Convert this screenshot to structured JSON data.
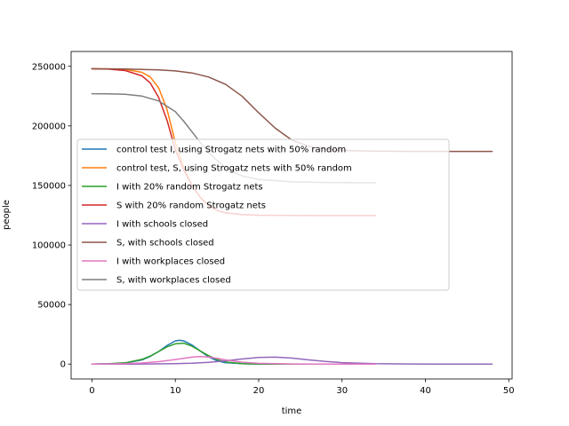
{
  "chart_data": {
    "type": "line",
    "title": "",
    "xlabel": "time",
    "ylabel": "people",
    "xlim": [
      -2.5,
      50.4
    ],
    "ylim": [
      -12500,
      262500
    ],
    "xticks": [
      0,
      10,
      20,
      30,
      40,
      50
    ],
    "yticks": [
      0,
      50000,
      100000,
      150000,
      200000,
      250000
    ],
    "grid": false,
    "legend_position": "center-left",
    "series": [
      {
        "name": "control test I, using Strogatz nets with 50% random",
        "color": "#1f77b4",
        "x": [
          0,
          2,
          4,
          6,
          7,
          8,
          9,
          10,
          10.5,
          11,
          12,
          13,
          14,
          15,
          16,
          18,
          20,
          24,
          28,
          32,
          34
        ],
        "y": [
          0,
          200,
          900,
          3500,
          6500,
          10500,
          15500,
          19500,
          20000,
          19500,
          16000,
          11000,
          6000,
          2800,
          1200,
          300,
          50,
          0,
          0,
          0,
          0
        ]
      },
      {
        "name": "control test, S, using Strogatz nets with 50% random",
        "color": "#ff7f0e",
        "x": [
          0,
          2,
          4,
          6,
          7,
          8,
          9,
          10,
          11,
          12,
          13,
          14,
          15,
          16,
          18,
          20,
          24,
          28,
          32,
          34
        ],
        "y": [
          248000,
          247900,
          247500,
          245000,
          241000,
          232000,
          214000,
          186000,
          165000,
          150000,
          140000,
          133000,
          129000,
          127000,
          125500,
          125000,
          124800,
          124700,
          124700,
          124700
        ]
      },
      {
        "name": "I  with 20% random Strogatz nets",
        "color": "#2ca02c",
        "x": [
          0,
          2,
          4,
          6,
          7,
          8,
          9,
          10,
          11,
          12,
          13,
          14,
          15,
          16,
          18,
          20,
          24,
          28,
          32,
          34
        ],
        "y": [
          0,
          300,
          1100,
          4000,
          6800,
          10500,
          14500,
          17000,
          17500,
          15000,
          11000,
          7000,
          3800,
          1800,
          400,
          80,
          0,
          0,
          0,
          0
        ]
      },
      {
        "name": "S  with 20% random Strogatz nets",
        "color": "#d62728",
        "x": [
          0,
          2,
          4,
          6,
          7,
          8,
          9,
          10,
          11,
          12,
          13,
          14,
          15,
          16,
          18,
          20,
          24,
          28,
          32,
          34
        ],
        "y": [
          248000,
          247700,
          246500,
          242000,
          236000,
          224000,
          205000,
          180000,
          163000,
          150000,
          140000,
          133000,
          129000,
          127000,
          125500,
          125000,
          124800,
          124700,
          124700,
          124700
        ]
      },
      {
        "name": "I with schools closed",
        "color": "#9467bd",
        "x": [
          0,
          5,
          10,
          12,
          14,
          16,
          18,
          20,
          22,
          24,
          26,
          28,
          30,
          34,
          38,
          42,
          48
        ],
        "y": [
          0,
          50,
          300,
          700,
          1400,
          2700,
          4300,
          5600,
          5800,
          5000,
          3500,
          2200,
          1200,
          300,
          80,
          20,
          0
        ]
      },
      {
        "name": "S, with schools closed",
        "color": "#8c564b",
        "x": [
          0,
          4,
          8,
          10,
          12,
          14,
          16,
          18,
          20,
          22,
          24,
          26,
          28,
          30,
          32,
          34,
          38,
          42,
          48
        ],
        "y": [
          248000,
          247800,
          247000,
          246200,
          244500,
          241000,
          235000,
          225000,
          211000,
          198000,
          188000,
          183000,
          180500,
          179500,
          179000,
          178800,
          178600,
          178600,
          178600
        ]
      },
      {
        "name": "I with workplaces closed",
        "color": "#e377c2",
        "x": [
          0,
          4,
          6,
          8,
          10,
          11,
          12,
          13,
          14,
          15,
          16,
          18,
          20,
          24,
          28,
          32,
          34
        ],
        "y": [
          0,
          300,
          900,
          2000,
          3800,
          4900,
          5800,
          6300,
          6000,
          4800,
          3500,
          1600,
          600,
          80,
          0,
          0,
          0
        ]
      },
      {
        "name": "S, with workplaces closed",
        "color": "#7f7f7f",
        "x": [
          0,
          2,
          4,
          6,
          8,
          10,
          11,
          12,
          13,
          14,
          15,
          16,
          17,
          18,
          20,
          24,
          28,
          32,
          34
        ],
        "y": [
          227000,
          226900,
          226500,
          225000,
          221000,
          212000,
          204000,
          195000,
          186000,
          178000,
          171000,
          165000,
          161000,
          158000,
          155000,
          153000,
          152500,
          152300,
          152300
        ]
      }
    ]
  }
}
